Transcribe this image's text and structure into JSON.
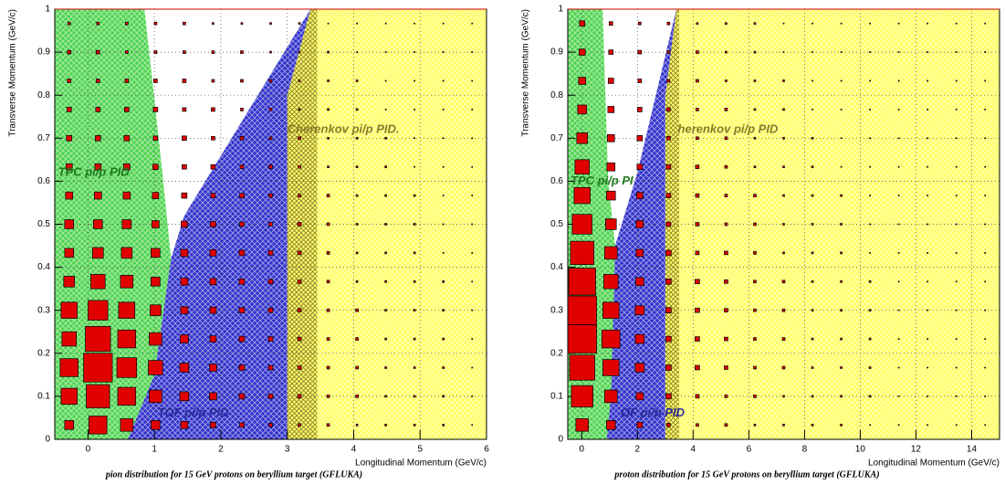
{
  "chart_data": [
    {
      "type": "box",
      "caption": "pion distribution for 15 GeV protons on beryllium target (GFLUKA)",
      "x_label": "Longitudinal Momentum (GeV/c)",
      "y_label": "Transverse Momentum (GeV/c)",
      "xlim": [
        -0.5,
        6
      ],
      "ylim": [
        0,
        1
      ],
      "xticks": [
        0,
        1,
        2,
        3,
        4,
        5,
        6
      ],
      "yticks": [
        0,
        0.1,
        0.2,
        0.3,
        0.4,
        0.5,
        0.6,
        0.7,
        0.8,
        0.9,
        1
      ],
      "grid": true,
      "color": "#e00000",
      "regions": [
        {
          "label": "TPC pi/p PID",
          "color": "#33cc33"
        },
        {
          "label": "TOF pi/p PID",
          "color": "#3333cc"
        },
        {
          "label": "Cherenkov pi/p PID.",
          "color": "#ffff66"
        }
      ],
      "z": [
        [
          10,
          20,
          14,
          10,
          8,
          6,
          5,
          4,
          3,
          3,
          2,
          2,
          2,
          2,
          1
        ],
        [
          18,
          26,
          20,
          14,
          10,
          8,
          6,
          5,
          4,
          3,
          3,
          2,
          2,
          2,
          1
        ],
        [
          20,
          32,
          22,
          16,
          10,
          8,
          6,
          5,
          4,
          3,
          3,
          2,
          2,
          2,
          1
        ],
        [
          16,
          28,
          20,
          14,
          9,
          7,
          6,
          5,
          4,
          3,
          3,
          2,
          2,
          2,
          1
        ],
        [
          18,
          22,
          18,
          12,
          8,
          7,
          6,
          5,
          4,
          3,
          3,
          2,
          2,
          2,
          1
        ],
        [
          12,
          16,
          14,
          10,
          8,
          7,
          6,
          5,
          4,
          3,
          2,
          2,
          2,
          2,
          1
        ],
        [
          10,
          12,
          12,
          10,
          8,
          7,
          6,
          5,
          4,
          3,
          2,
          2,
          2,
          1,
          1
        ],
        [
          10,
          10,
          10,
          8,
          7,
          6,
          5,
          4,
          4,
          3,
          2,
          2,
          2,
          1,
          1
        ],
        [
          8,
          8,
          8,
          7,
          6,
          5,
          5,
          4,
          3,
          3,
          2,
          2,
          2,
          1,
          1
        ],
        [
          7,
          7,
          7,
          6,
          5,
          5,
          4,
          4,
          3,
          2,
          2,
          2,
          1,
          1,
          1
        ],
        [
          6,
          6,
          6,
          5,
          5,
          4,
          4,
          3,
          3,
          2,
          2,
          2,
          1,
          1,
          1
        ],
        [
          5,
          5,
          5,
          5,
          4,
          4,
          3,
          3,
          2,
          2,
          2,
          1,
          1,
          1,
          1
        ],
        [
          4,
          4,
          4,
          4,
          4,
          3,
          3,
          3,
          2,
          2,
          2,
          1,
          1,
          1,
          1
        ],
        [
          4,
          4,
          3,
          3,
          3,
          3,
          3,
          2,
          2,
          2,
          1,
          1,
          1,
          1,
          1
        ],
        [
          3,
          3,
          3,
          3,
          3,
          2,
          2,
          2,
          2,
          1,
          1,
          1,
          1,
          1,
          1
        ]
      ]
    },
    {
      "type": "box",
      "caption": "proton distribution for 15 GeV protons on beryllium target (GFLUKA)",
      "x_label": "Longitudinal Momentum (GeV/c)",
      "y_label": "Transverse Momentum (GeV/c)",
      "xlim": [
        -0.5,
        15
      ],
      "ylim": [
        0,
        1
      ],
      "xticks": [
        0,
        2,
        4,
        6,
        8,
        10,
        12,
        14
      ],
      "yticks": [
        0,
        0.1,
        0.2,
        0.3,
        0.4,
        0.5,
        0.6,
        0.7,
        0.8,
        0.9,
        1
      ],
      "grid": true,
      "color": "#e00000",
      "regions": [
        {
          "label": "TPC pi/p PI",
          "color": "#33cc33"
        },
        {
          "label": "OF pi/p PID",
          "color": "#3333cc"
        },
        {
          "label": "herenkov pi/p PID",
          "color": "#ffff66"
        }
      ],
      "z": [
        [
          14,
          10,
          6,
          4,
          3,
          3,
          2,
          2,
          2,
          2,
          1,
          1,
          1,
          1,
          1
        ],
        [
          24,
          14,
          8,
          6,
          4,
          3,
          3,
          2,
          2,
          2,
          2,
          1,
          1,
          1,
          1
        ],
        [
          28,
          18,
          10,
          6,
          5,
          4,
          3,
          3,
          2,
          2,
          2,
          1,
          1,
          1,
          1
        ],
        [
          32,
          20,
          10,
          6,
          5,
          4,
          3,
          3,
          2,
          2,
          2,
          1,
          1,
          1,
          1
        ],
        [
          32,
          18,
          10,
          6,
          5,
          4,
          3,
          3,
          2,
          2,
          2,
          1,
          1,
          1,
          1
        ],
        [
          30,
          16,
          9,
          6,
          5,
          4,
          3,
          3,
          2,
          2,
          2,
          1,
          1,
          1,
          1
        ],
        [
          26,
          14,
          8,
          6,
          4,
          4,
          3,
          2,
          2,
          2,
          1,
          1,
          1,
          1,
          1
        ],
        [
          22,
          12,
          8,
          5,
          4,
          3,
          3,
          2,
          2,
          2,
          1,
          1,
          1,
          1,
          1
        ],
        [
          18,
          10,
          7,
          5,
          4,
          3,
          3,
          2,
          2,
          2,
          1,
          1,
          1,
          1,
          1
        ],
        [
          16,
          9,
          6,
          5,
          4,
          3,
          2,
          2,
          2,
          1,
          1,
          1,
          1,
          1,
          1
        ],
        [
          12,
          8,
          6,
          4,
          3,
          3,
          2,
          2,
          2,
          1,
          1,
          1,
          1,
          1,
          1
        ],
        [
          10,
          7,
          5,
          4,
          3,
          3,
          2,
          2,
          1,
          1,
          1,
          1,
          1,
          1,
          1
        ],
        [
          8,
          6,
          4,
          3,
          3,
          2,
          2,
          2,
          1,
          1,
          1,
          1,
          1,
          1,
          1
        ],
        [
          7,
          5,
          4,
          3,
          3,
          2,
          2,
          1,
          1,
          1,
          1,
          1,
          1,
          1,
          1
        ],
        [
          6,
          4,
          3,
          3,
          2,
          2,
          2,
          1,
          1,
          1,
          1,
          1,
          1,
          1,
          1
        ]
      ]
    }
  ]
}
